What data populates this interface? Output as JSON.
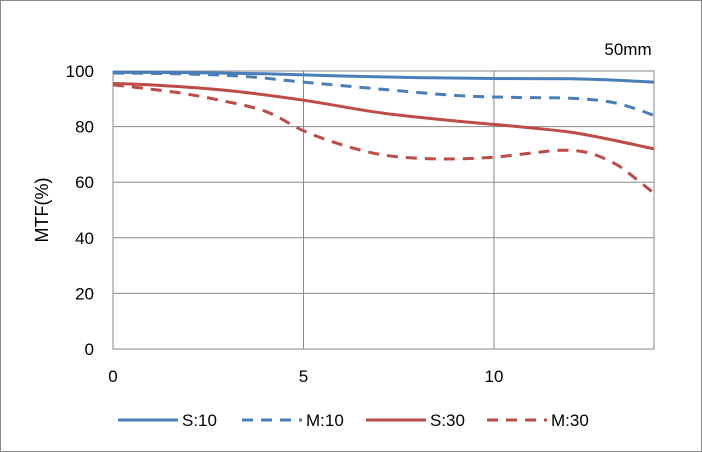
{
  "chart_data": {
    "type": "line",
    "title": "",
    "annotation": "50mm",
    "xlabel": "",
    "ylabel": "MTF(%)",
    "xlim": [
      0,
      14.2
    ],
    "ylim": [
      0,
      100
    ],
    "x_ticks": [
      0,
      5,
      10
    ],
    "y_ticks": [
      0,
      20,
      40,
      60,
      80,
      100
    ],
    "grid": true,
    "legend_position": "bottom",
    "series": [
      {
        "name": "S:10",
        "color": "#4a7ebb",
        "dash": "solid",
        "points": [
          [
            0,
            99.5
          ],
          [
            2,
            99.4
          ],
          [
            4,
            99.0
          ],
          [
            6,
            98.2
          ],
          [
            8,
            97.6
          ],
          [
            10,
            97.3
          ],
          [
            12,
            97.2
          ],
          [
            13,
            96.8
          ],
          [
            14.2,
            96.0
          ]
        ]
      },
      {
        "name": "M:10",
        "color": "#4a7ebb",
        "dash": "dashed",
        "points": [
          [
            0,
            99.3
          ],
          [
            2,
            98.9
          ],
          [
            3.5,
            98.0
          ],
          [
            5,
            96.0
          ],
          [
            7,
            93.5
          ],
          [
            9,
            91.2
          ],
          [
            10.5,
            90.5
          ],
          [
            12,
            90.2
          ],
          [
            13,
            89.0
          ],
          [
            13.7,
            86.5
          ],
          [
            14.2,
            84.0
          ]
        ]
      },
      {
        "name": "S:30",
        "color": "#be4b48",
        "dash": "solid",
        "points": [
          [
            0,
            95.5
          ],
          [
            1,
            95.0
          ],
          [
            3,
            93.0
          ],
          [
            5,
            89.5
          ],
          [
            7,
            85.0
          ],
          [
            9,
            82.0
          ],
          [
            10,
            80.8
          ],
          [
            11,
            79.5
          ],
          [
            12,
            78.0
          ],
          [
            13,
            75.5
          ],
          [
            14.2,
            72.0
          ]
        ]
      },
      {
        "name": "M:30",
        "color": "#be4b48",
        "dash": "dashed",
        "points": [
          [
            0,
            95.0
          ],
          [
            0.8,
            93.8
          ],
          [
            1.8,
            92.0
          ],
          [
            2.8,
            89.5
          ],
          [
            4,
            85.5
          ],
          [
            5,
            78.5
          ],
          [
            6,
            73.5
          ],
          [
            7,
            70.0
          ],
          [
            8,
            68.6
          ],
          [
            9,
            68.4
          ],
          [
            10,
            69.0
          ],
          [
            11,
            70.5
          ],
          [
            11.8,
            71.5
          ],
          [
            12.5,
            70.5
          ],
          [
            13.2,
            66.5
          ],
          [
            13.7,
            61.5
          ],
          [
            14.2,
            56.0
          ]
        ]
      }
    ]
  }
}
